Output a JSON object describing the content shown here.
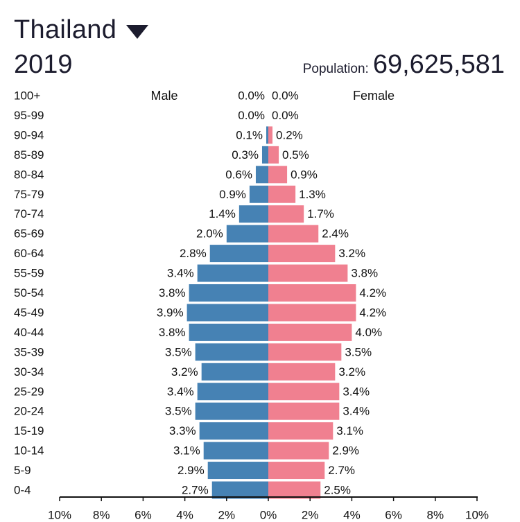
{
  "header": {
    "country": "Thailand",
    "year": "2019",
    "population_label": "Population:",
    "population_value": "69,625,581"
  },
  "colors": {
    "male": "#4682b4",
    "female": "#f08090"
  },
  "chart_data": {
    "type": "bar",
    "orientation": "horizontal",
    "categories": [
      "100+",
      "95-99",
      "90-94",
      "85-89",
      "80-84",
      "75-79",
      "70-74",
      "65-69",
      "60-64",
      "55-59",
      "50-54",
      "45-49",
      "40-44",
      "35-39",
      "30-34",
      "25-29",
      "20-24",
      "15-19",
      "10-14",
      "5-9",
      "0-4"
    ],
    "series": [
      {
        "name": "Male",
        "values": [
          0.0,
          0.0,
          0.1,
          0.3,
          0.6,
          0.9,
          1.4,
          2.0,
          2.8,
          3.4,
          3.8,
          3.9,
          3.8,
          3.5,
          3.2,
          3.4,
          3.5,
          3.3,
          3.1,
          2.9,
          2.7
        ]
      },
      {
        "name": "Female",
        "values": [
          0.0,
          0.0,
          0.2,
          0.5,
          0.9,
          1.3,
          1.7,
          2.4,
          3.2,
          3.8,
          4.2,
          4.2,
          4.0,
          3.5,
          3.2,
          3.4,
          3.4,
          3.1,
          2.9,
          2.7,
          2.5
        ]
      }
    ],
    "xlim": [
      -10,
      10
    ],
    "x_ticks": [
      "10%",
      "8%",
      "6%",
      "4%",
      "2%",
      "0%",
      "2%",
      "4%",
      "6%",
      "8%",
      "10%"
    ],
    "unit": "%"
  }
}
